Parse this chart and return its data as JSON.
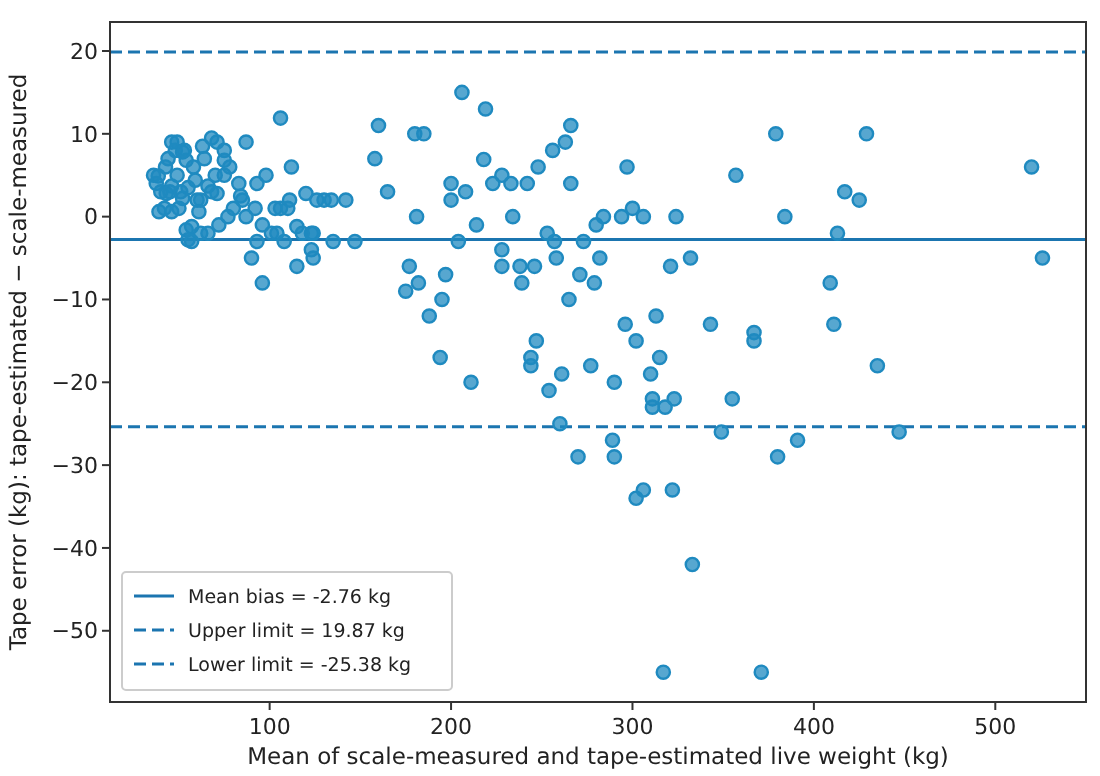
{
  "chart_data": {
    "type": "scatter",
    "xlabel": "Mean of scale-measured and tape-estimated live weight (kg)",
    "ylabel": "Tape error (kg): tape-estimated − scale-measured",
    "xlim": [
      12,
      550
    ],
    "ylim": [
      -58.6,
      23.5
    ],
    "xticks": [
      100,
      200,
      300,
      400,
      500
    ],
    "yticks": [
      -50,
      -40,
      -30,
      -20,
      -10,
      0,
      10,
      20
    ],
    "grid": false,
    "legend": "bottom left",
    "marker": "circle",
    "series": [
      {
        "color": "#1f8ac0",
        "x": [
          106,
          49,
          68,
          71,
          63,
          52,
          75,
          87,
          54,
          75,
          42.6,
          112,
          160,
          158,
          180,
          185,
          38.6,
          49,
          59,
          75,
          98,
          37.5,
          46,
          55,
          66,
          83,
          93,
          165,
          200,
          43,
          52,
          60,
          71,
          84,
          111,
          120,
          126,
          130,
          134,
          142,
          200,
          39,
          46,
          61,
          77,
          87,
          92,
          103,
          106,
          115,
          181,
          54,
          57,
          62,
          66,
          55,
          57,
          93,
          101,
          104,
          108,
          123,
          124,
          135,
          147,
          90,
          123,
          124,
          115,
          96,
          177,
          175,
          182,
          197,
          195,
          188,
          194,
          46,
          44,
          40,
          48,
          58,
          64,
          70,
          80,
          50,
          45,
          68,
          72,
          36,
          42,
          51,
          53,
          62,
          78,
          85,
          96,
          110,
          118
        ],
        "values": [
          11.9,
          9,
          9.5,
          9,
          8.5,
          7.8,
          8,
          9,
          6.8,
          6.8,
          6,
          6,
          11,
          7,
          10,
          10,
          4.9,
          5,
          4.4,
          5,
          5,
          4,
          3.7,
          3.5,
          3.7,
          4,
          4,
          3,
          4,
          2.8,
          2.2,
          2,
          2.8,
          2.5,
          2,
          2.8,
          2,
          2,
          2,
          2,
          2,
          0.6,
          0.6,
          0.6,
          0,
          0,
          1,
          1,
          1,
          -1.2,
          0,
          -1.6,
          -1.2,
          -2,
          -2,
          -2.8,
          -3,
          -3,
          -2,
          -2,
          -3,
          -2,
          -2,
          -3,
          -3,
          -5,
          -4,
          -5,
          -6,
          -8,
          -6,
          -9,
          -8,
          -7,
          -10,
          -12,
          -17,
          9,
          7,
          3,
          8,
          6,
          7,
          5,
          1,
          1,
          3,
          3,
          -1,
          5,
          1,
          3,
          8,
          2,
          6,
          2,
          -1,
          1,
          -2
        ]
      },
      {
        "color": "#1f8ac0",
        "x": [
          206,
          219,
          218,
          208,
          223,
          228,
          233,
          242,
          248,
          256,
          263,
          266,
          266,
          234,
          214,
          204,
          253,
          257,
          280,
          284,
          294,
          300,
          306,
          297,
          273,
          324,
          332,
          321,
          228,
          228,
          238,
          246,
          239,
          258,
          271,
          279,
          265,
          282,
          211,
          247,
          244,
          244,
          261,
          254,
          277,
          296,
          302,
          313,
          315,
          310,
          290,
          311,
          323,
          379,
          429,
          357,
          417,
          425,
          520,
          526,
          384,
          413,
          409,
          411,
          435,
          343,
          367,
          367,
          355,
          311,
          318,
          349,
          289,
          290,
          270,
          380,
          391,
          447,
          302,
          306,
          322,
          333,
          317,
          371,
          260
        ],
        "values": [
          15,
          13,
          6.9,
          3,
          4,
          5,
          4,
          4,
          6,
          8,
          9,
          11,
          4,
          0,
          -1,
          -3,
          -2,
          -3,
          -1,
          0,
          0,
          1,
          0,
          6,
          -3,
          0,
          -5,
          -6,
          -4,
          -6,
          -6,
          -6,
          -8,
          -5,
          -7,
          -8,
          -10,
          -5,
          -20,
          -15,
          -17,
          -18,
          -19,
          -21,
          -18,
          -13,
          -15,
          -12,
          -17,
          -19,
          -20,
          -22,
          -22,
          10,
          10,
          5,
          3,
          2,
          6,
          -5,
          0,
          -2,
          -8,
          -13,
          -18,
          -13,
          -14,
          -15,
          -22,
          -23,
          -23,
          -26,
          -27,
          -29,
          -29,
          -29,
          -27,
          -26,
          -34,
          -33,
          -33,
          -42,
          -55,
          -55,
          -25
        ]
      }
    ],
    "ref_lines": [
      {
        "axis": "y",
        "value": -2.76,
        "label": "Mean bias = -2.76 kg",
        "color": "#1b75b0",
        "line_style": "solid"
      },
      {
        "axis": "y",
        "value": 19.87,
        "label": "Upper limit = 19.87 kg",
        "color": "#1b75b0",
        "line_style": "dashed"
      },
      {
        "axis": "y",
        "value": -25.38,
        "label": "Lower limit = -25.38 kg",
        "color": "#1b75b0",
        "line_style": "dashed"
      }
    ]
  }
}
